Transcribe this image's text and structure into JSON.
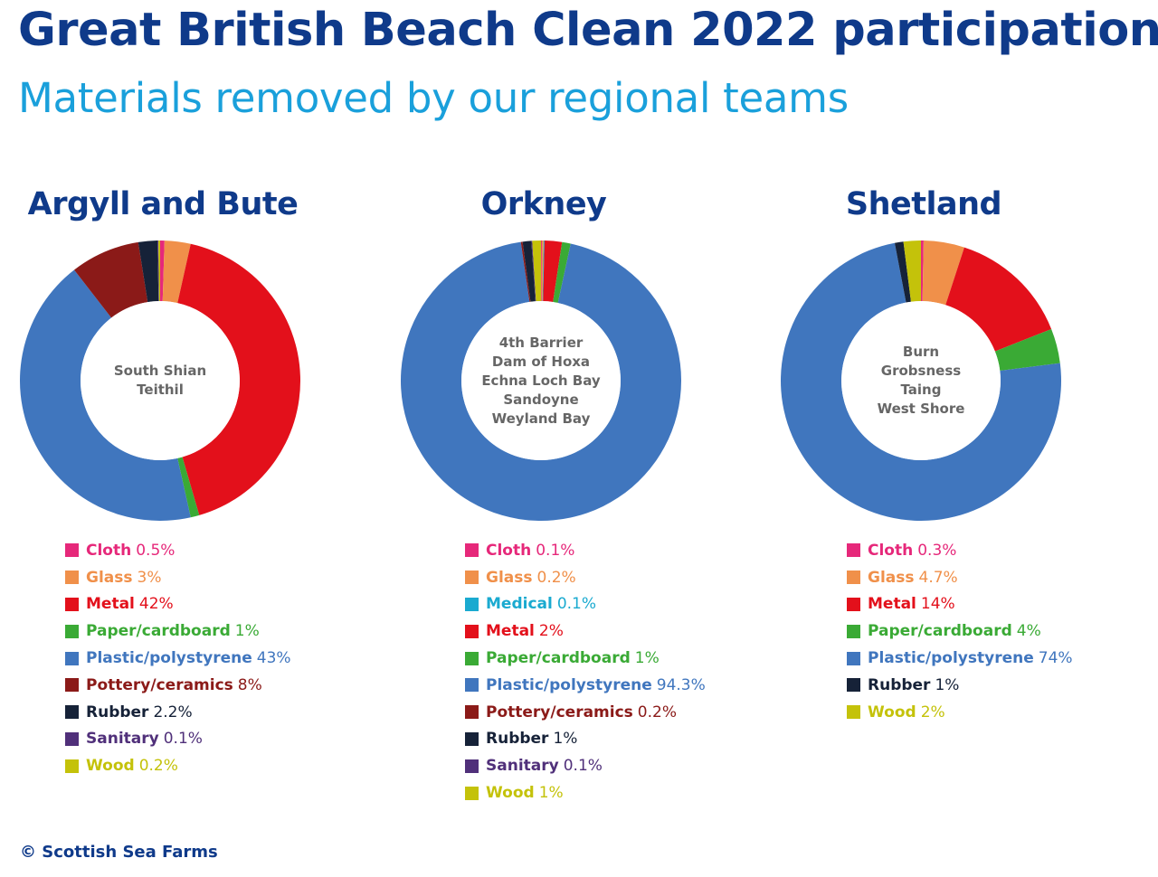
{
  "title": "Great British Beach Clean 2022 participation",
  "subtitle": "Materials removed by our regional teams",
  "credit": "© Scottish Sea Farms",
  "colors": {
    "Cloth": "#e6287a",
    "Glass": "#f0904a",
    "Medical": "#1aaad0",
    "Metal": "#e3101b",
    "Paper/cardboard": "#3aaa35",
    "Plastic/polystyrene": "#4076be",
    "Pottery/ceramics": "#8b1a18",
    "Rubber": "#162238",
    "Sanitary": "#50307a",
    "Wood": "#c4c20a"
  },
  "chart_data": [
    {
      "type": "pie",
      "title": "Argyll and Bute",
      "sites": [
        "South Shian",
        "Teithil"
      ],
      "slices": [
        {
          "name": "Cloth",
          "label": "0.5%",
          "value": 0.5
        },
        {
          "name": "Glass",
          "label": "3%",
          "value": 3
        },
        {
          "name": "Metal",
          "label": "42%",
          "value": 42
        },
        {
          "name": "Paper/cardboard",
          "label": "1%",
          "value": 1
        },
        {
          "name": "Plastic/polystyrene",
          "label": "43%",
          "value": 43
        },
        {
          "name": "Pottery/ceramics",
          "label": "8%",
          "value": 8
        },
        {
          "name": "Rubber",
          "label": "2.2%",
          "value": 2.2
        },
        {
          "name": "Sanitary",
          "label": "0.1%",
          "value": 0.1
        },
        {
          "name": "Wood",
          "label": "0.2%",
          "value": 0.2
        }
      ]
    },
    {
      "type": "pie",
      "title": "Orkney",
      "sites": [
        "4th Barrier",
        "Dam of Hoxa",
        "Echna Loch Bay",
        "Sandoyne",
        "Weyland Bay"
      ],
      "slices": [
        {
          "name": "Cloth",
          "label": "0.1%",
          "value": 0.1
        },
        {
          "name": "Glass",
          "label": "0.2%",
          "value": 0.2
        },
        {
          "name": "Medical",
          "label": "0.1%",
          "value": 0.1
        },
        {
          "name": "Metal",
          "label": "2%",
          "value": 2
        },
        {
          "name": "Paper/cardboard",
          "label": "1%",
          "value": 1
        },
        {
          "name": "Plastic/polystyrene",
          "label": "94.3%",
          "value": 94.3
        },
        {
          "name": "Pottery/ceramics",
          "label": "0.2%",
          "value": 0.2
        },
        {
          "name": "Rubber",
          "label": "1%",
          "value": 1
        },
        {
          "name": "Sanitary",
          "label": "0.1%",
          "value": 0.1
        },
        {
          "name": "Wood",
          "label": "1%",
          "value": 1
        }
      ]
    },
    {
      "type": "pie",
      "title": "Shetland",
      "sites": [
        "Burn",
        "Grobsness",
        "Taing",
        "West Shore"
      ],
      "slices": [
        {
          "name": "Cloth",
          "label": "0.3%",
          "value": 0.3
        },
        {
          "name": "Glass",
          "label": "4.7%",
          "value": 4.7
        },
        {
          "name": "Metal",
          "label": "14%",
          "value": 14
        },
        {
          "name": "Paper/cardboard",
          "label": "4%",
          "value": 4
        },
        {
          "name": "Plastic/polystyrene",
          "label": "74%",
          "value": 74
        },
        {
          "name": "Rubber",
          "label": "1%",
          "value": 1
        },
        {
          "name": "Wood",
          "label": "2%",
          "value": 2
        }
      ]
    }
  ]
}
